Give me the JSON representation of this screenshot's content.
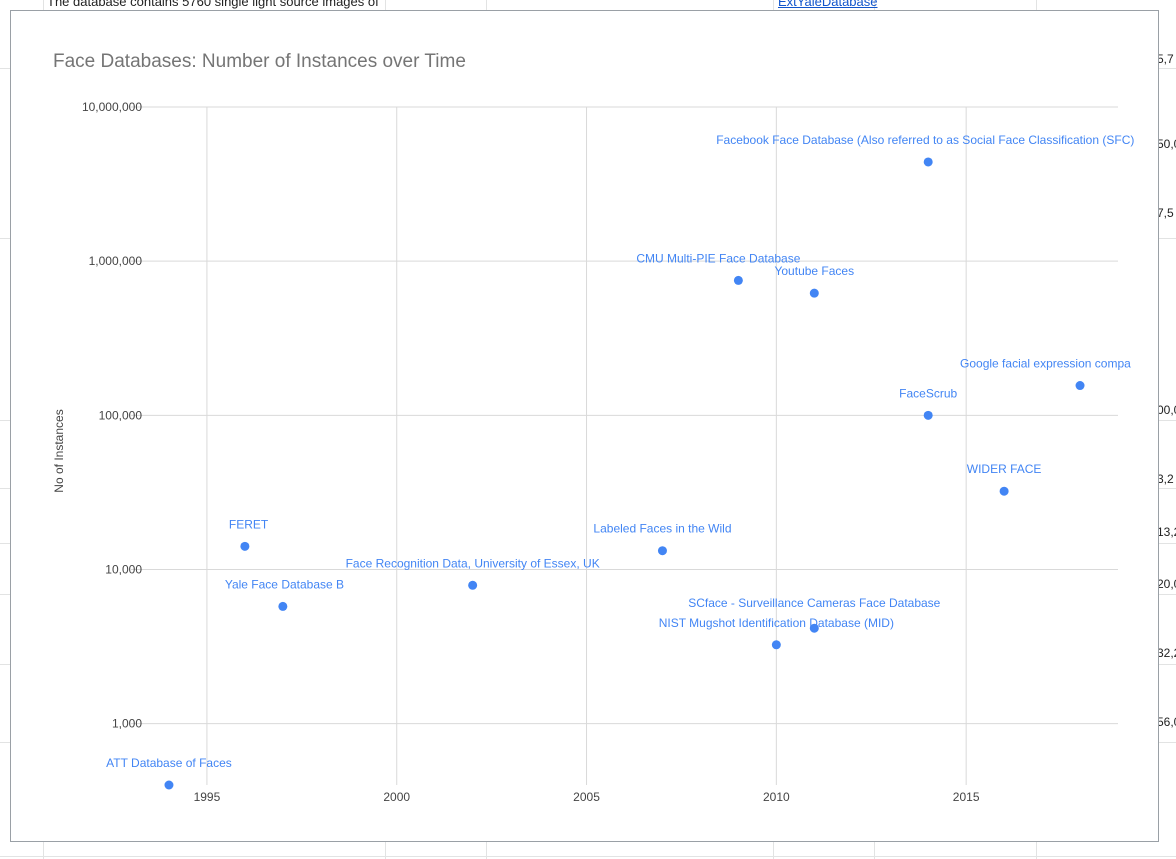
{
  "sheet": {
    "top_text": "The database contains 5760 single light source images of",
    "top_link": "ExtYaleDatabase",
    "right_numbers": [
      "5,7",
      "50,0",
      "7,5",
      "00,0",
      "3,2",
      "13,2",
      "20,0",
      "32,2",
      "56,0"
    ]
  },
  "chart_data": {
    "type": "scatter",
    "title": "Face Databases: Number of Instances over Time",
    "xlabel": "",
    "ylabel": "No of Instances",
    "x_scale": "linear",
    "y_scale": "log",
    "xlim": [
      1993,
      2019
    ],
    "ylim": [
      400,
      10000000
    ],
    "x_ticks": [
      1995,
      2000,
      2005,
      2010,
      2015
    ],
    "x_tick_labels": [
      "1995",
      "2000",
      "2005",
      "2010",
      "2015"
    ],
    "y_ticks": [
      1000,
      10000,
      100000,
      1000000,
      10000000
    ],
    "y_tick_labels": [
      "1,000",
      "10,000",
      "100,000",
      "1,000,000",
      "10,000,000"
    ],
    "grid": true,
    "legend": "none",
    "point_color": "#4285f4",
    "label_color": "#4285f4",
    "points": [
      {
        "label": "ATT Database of Faces",
        "x": 1994,
        "y": 400
      },
      {
        "label": "FERET",
        "x": 1996,
        "y": 14126
      },
      {
        "label": "Yale Face Database B",
        "x": 1997,
        "y": 5760
      },
      {
        "label": "Face Recognition Data, University of Essex, UK",
        "x": 2002,
        "y": 7900
      },
      {
        "label": "Labeled Faces in the Wild",
        "x": 2007,
        "y": 13233
      },
      {
        "label": "CMU Multi-PIE Face Database",
        "x": 2009,
        "y": 750000
      },
      {
        "label": "NIST Mugshot Identification Database (MID)",
        "x": 2010,
        "y": 3248
      },
      {
        "label": "SCface - Surveillance Cameras Face Database",
        "x": 2011,
        "y": 4160
      },
      {
        "label": "Youtube Faces",
        "x": 2011,
        "y": 620000
      },
      {
        "label": "Facebook Face Database (Also referred to as Social  Face  Classification  (SFC)",
        "x": 2014,
        "y": 4400000
      },
      {
        "label": "FaceScrub",
        "x": 2014,
        "y": 100000
      },
      {
        "label": "WIDER FACE",
        "x": 2016,
        "y": 32203
      },
      {
        "label": "Google facial expression compa",
        "x": 2018,
        "y": 156000
      }
    ]
  }
}
